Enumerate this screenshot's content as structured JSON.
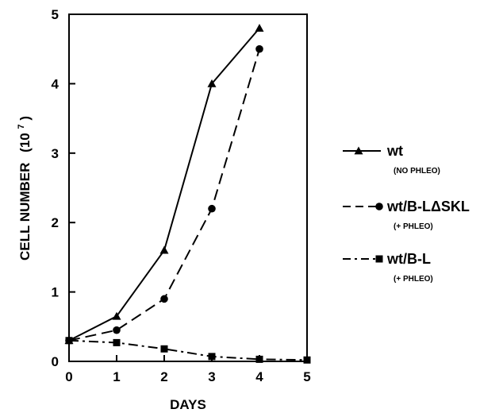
{
  "chart_data": {
    "type": "line",
    "title": "",
    "xlabel": "DAYS",
    "ylabel": "CELL NUMBER",
    "ylabel_unit_base": "(10",
    "ylabel_unit_exp": "7",
    "ylabel_unit_close": ")",
    "xlim": [
      0,
      5
    ],
    "ylim": [
      0,
      5
    ],
    "xticks": [
      "0",
      "1",
      "2",
      "3",
      "4",
      "5"
    ],
    "yticks": [
      "0",
      "1",
      "2",
      "3",
      "4",
      "5"
    ],
    "grid": false,
    "legend_position": "right",
    "series": [
      {
        "name": "wt",
        "note": "(NO PHLEO)",
        "marker": "triangle",
        "line_style": "solid",
        "x": [
          0,
          1,
          2,
          3,
          4
        ],
        "y": [
          0.3,
          0.65,
          1.6,
          4.0,
          4.8
        ]
      },
      {
        "name": "wt/B-LΔSKL",
        "note": "(+ PHLEO)",
        "marker": "circle",
        "line_style": "dashed",
        "x": [
          0,
          1,
          2,
          3,
          4
        ],
        "y": [
          0.3,
          0.45,
          0.9,
          2.2,
          4.5
        ]
      },
      {
        "name": "wt/B-L",
        "note": "(+ PHLEO)",
        "marker": "square",
        "line_style": "dash-dot",
        "x": [
          0,
          1,
          2,
          3,
          4,
          5
        ],
        "y": [
          0.3,
          0.27,
          0.18,
          0.07,
          0.03,
          0.02
        ]
      }
    ]
  }
}
